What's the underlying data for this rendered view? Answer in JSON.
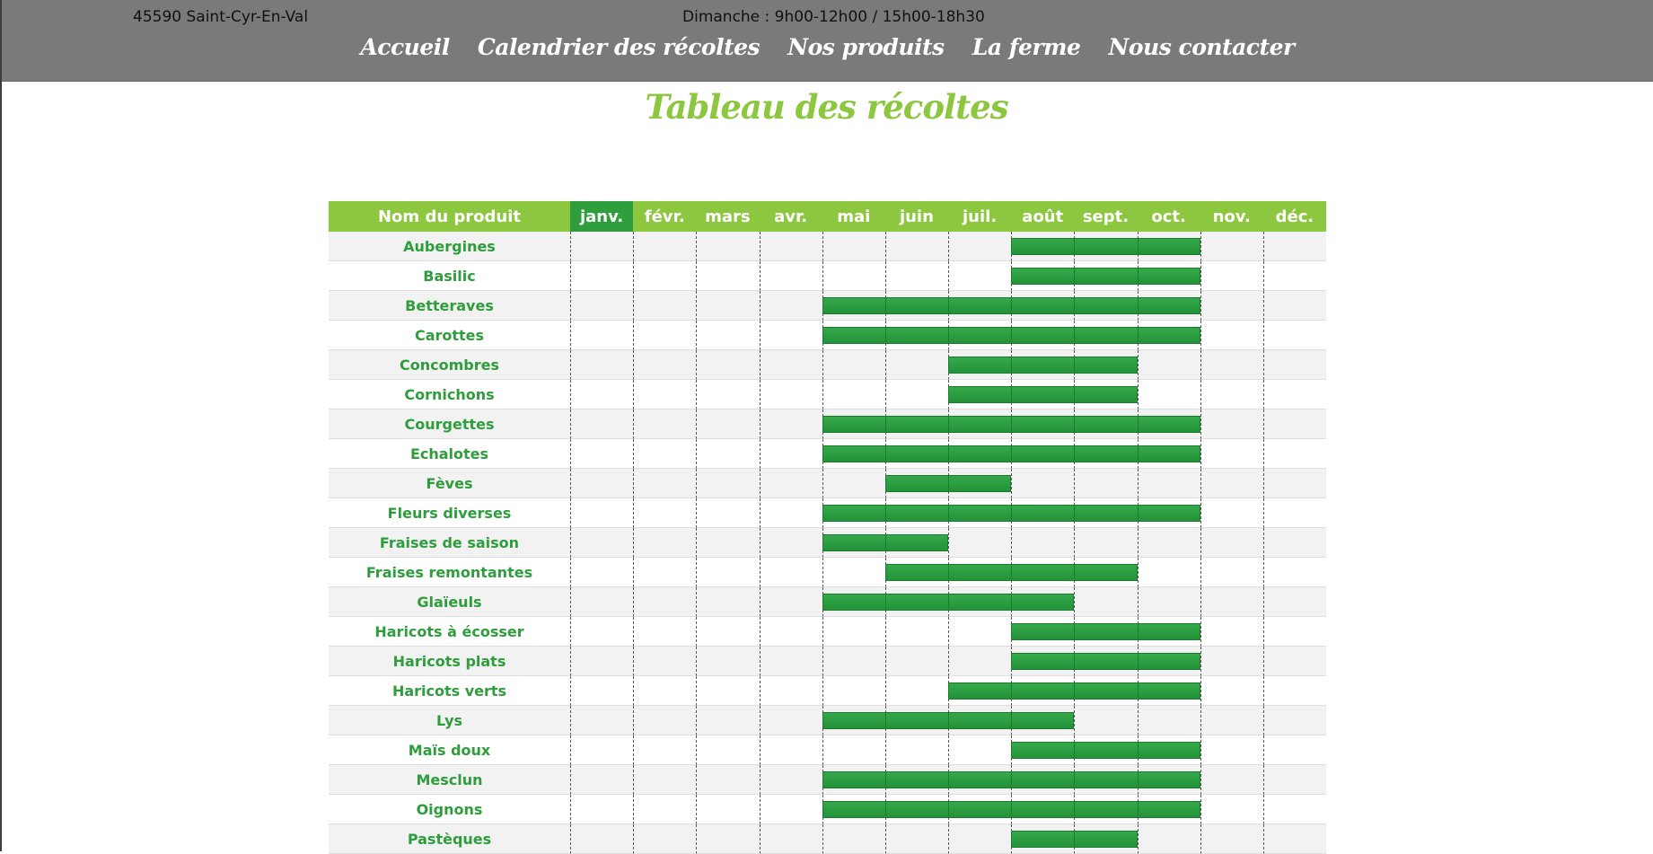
{
  "header": {
    "address": "45590 Saint-Cyr-En-Val",
    "hours": "Dimanche : 9h00-12h00 / 15h00-18h30",
    "nav": [
      "Accueil",
      "Calendrier des récoltes",
      "Nos produits",
      "La ferme",
      "Nous contacter"
    ]
  },
  "page": {
    "title": "Tableau des récoltes"
  },
  "colors": {
    "accent": "#8dc63f",
    "bar": "#2e9d3c",
    "header_bg": "#7a7a7a"
  },
  "table": {
    "name_header": "Nom du produit",
    "months": [
      "janv.",
      "févr.",
      "mars",
      "avr.",
      "mai",
      "juin",
      "juil.",
      "août",
      "sept.",
      "oct.",
      "nov.",
      "déc."
    ],
    "current_month": "janv.",
    "products": [
      {
        "name": "Aubergines",
        "start": "août",
        "end": "oct."
      },
      {
        "name": "Basilic",
        "start": "août",
        "end": "oct."
      },
      {
        "name": "Betteraves",
        "start": "mai",
        "end": "oct."
      },
      {
        "name": "Carottes",
        "start": "mai",
        "end": "oct."
      },
      {
        "name": "Concombres",
        "start": "juil.",
        "end": "sept."
      },
      {
        "name": "Cornichons",
        "start": "juil.",
        "end": "sept."
      },
      {
        "name": "Courgettes",
        "start": "mai",
        "end": "oct."
      },
      {
        "name": "Echalotes",
        "start": "mai",
        "end": "oct."
      },
      {
        "name": "Fèves",
        "start": "juin",
        "end": "juil."
      },
      {
        "name": "Fleurs diverses",
        "start": "mai",
        "end": "oct."
      },
      {
        "name": "Fraises de saison",
        "start": "mai",
        "end": "juin"
      },
      {
        "name": "Fraises remontantes",
        "start": "juin",
        "end": "sept."
      },
      {
        "name": "Glaïeuls",
        "start": "mai",
        "end": "août"
      },
      {
        "name": "Haricots à écosser",
        "start": "août",
        "end": "oct."
      },
      {
        "name": "Haricots plats",
        "start": "août",
        "end": "oct."
      },
      {
        "name": "Haricots verts",
        "start": "juil.",
        "end": "oct."
      },
      {
        "name": "Lys",
        "start": "mai",
        "end": "août"
      },
      {
        "name": "Maïs doux",
        "start": "août",
        "end": "oct."
      },
      {
        "name": "Mesclun",
        "start": "mai",
        "end": "oct."
      },
      {
        "name": "Oignons",
        "start": "mai",
        "end": "oct."
      },
      {
        "name": "Pastèques",
        "start": "août",
        "end": "sept."
      }
    ]
  }
}
